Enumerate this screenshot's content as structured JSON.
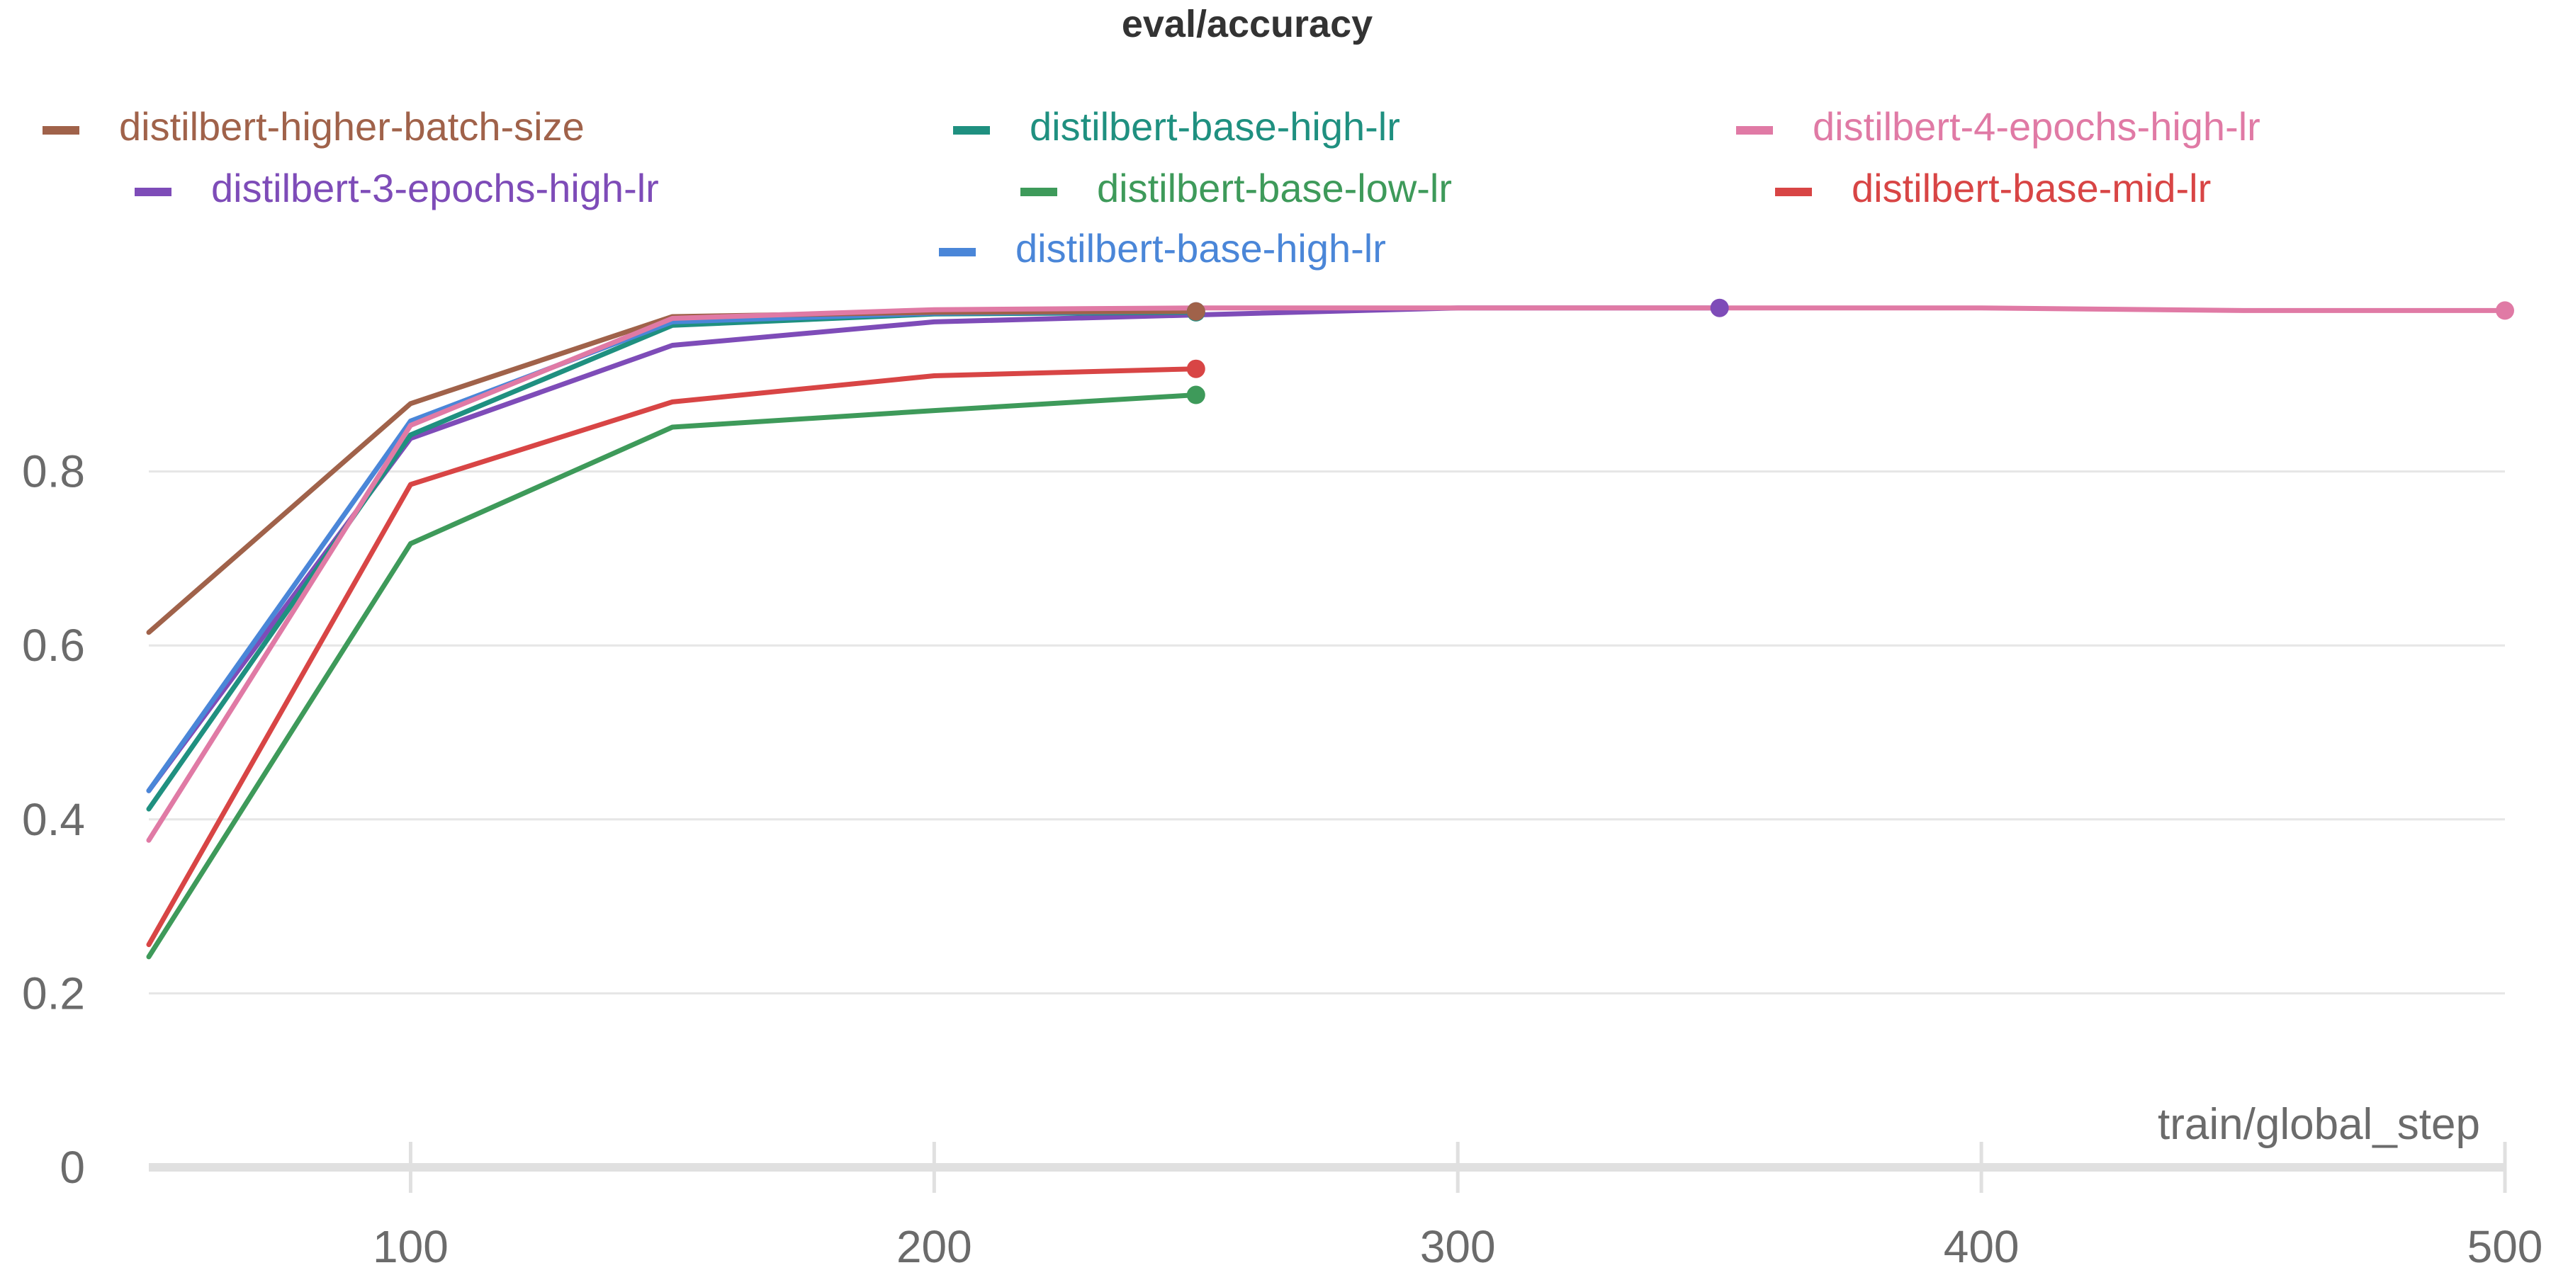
{
  "chart_data": {
    "type": "line",
    "title": "eval/accuracy",
    "xlabel": "train/global_step",
    "ylabel": "",
    "xlim": [
      50,
      500
    ],
    "ylim": [
      0,
      1.0
    ],
    "x_ticks": [
      100,
      200,
      300,
      400,
      500
    ],
    "y_ticks": [
      0,
      0.2,
      0.4,
      0.6,
      0.8
    ],
    "y_tick_labels": [
      "0",
      "0.2",
      "0.4",
      "0.6",
      "0.8"
    ],
    "grid": true,
    "legend_position": "top",
    "series": [
      {
        "name": "distilbert-higher-batch-size",
        "color": "#a0624a",
        "x": [
          50,
          100,
          150,
          200,
          250
        ],
        "y": [
          0.615,
          0.878,
          0.978,
          0.983,
          0.984
        ]
      },
      {
        "name": "distilbert-base-high-lr",
        "color": "#1f9080",
        "x": [
          50,
          100,
          150,
          200,
          250
        ],
        "y": [
          0.412,
          0.842,
          0.968,
          0.981,
          0.983
        ]
      },
      {
        "name": "distilbert-4-epochs-high-lr",
        "color": "#e07aa5",
        "x": [
          50,
          100,
          150,
          200,
          250,
          300,
          350,
          400,
          450,
          500
        ],
        "y": [
          0.376,
          0.853,
          0.976,
          0.986,
          0.988,
          0.988,
          0.988,
          0.988,
          0.985,
          0.985
        ]
      },
      {
        "name": "distilbert-3-epochs-high-lr",
        "color": "#7e4cb8",
        "x": [
          50,
          100,
          150,
          200,
          250,
          300,
          350
        ],
        "y": [
          0.433,
          0.838,
          0.945,
          0.972,
          0.98,
          0.988,
          0.988
        ]
      },
      {
        "name": "distilbert-base-low-lr",
        "color": "#3e9a5a",
        "x": [
          50,
          100,
          150,
          200,
          250
        ],
        "y": [
          0.242,
          0.717,
          0.851,
          0.87,
          0.888
        ]
      },
      {
        "name": "distilbert-base-mid-lr",
        "color": "#d84545",
        "x": [
          50,
          100,
          150,
          200,
          250
        ],
        "y": [
          0.256,
          0.785,
          0.88,
          0.91,
          0.918
        ]
      },
      {
        "name": "distilbert-base-high-lr",
        "color": "#4a86d8",
        "x": [
          50,
          100,
          150,
          200,
          250
        ],
        "y": [
          0.433,
          0.858,
          0.972,
          0.982,
          0.984
        ]
      }
    ]
  }
}
